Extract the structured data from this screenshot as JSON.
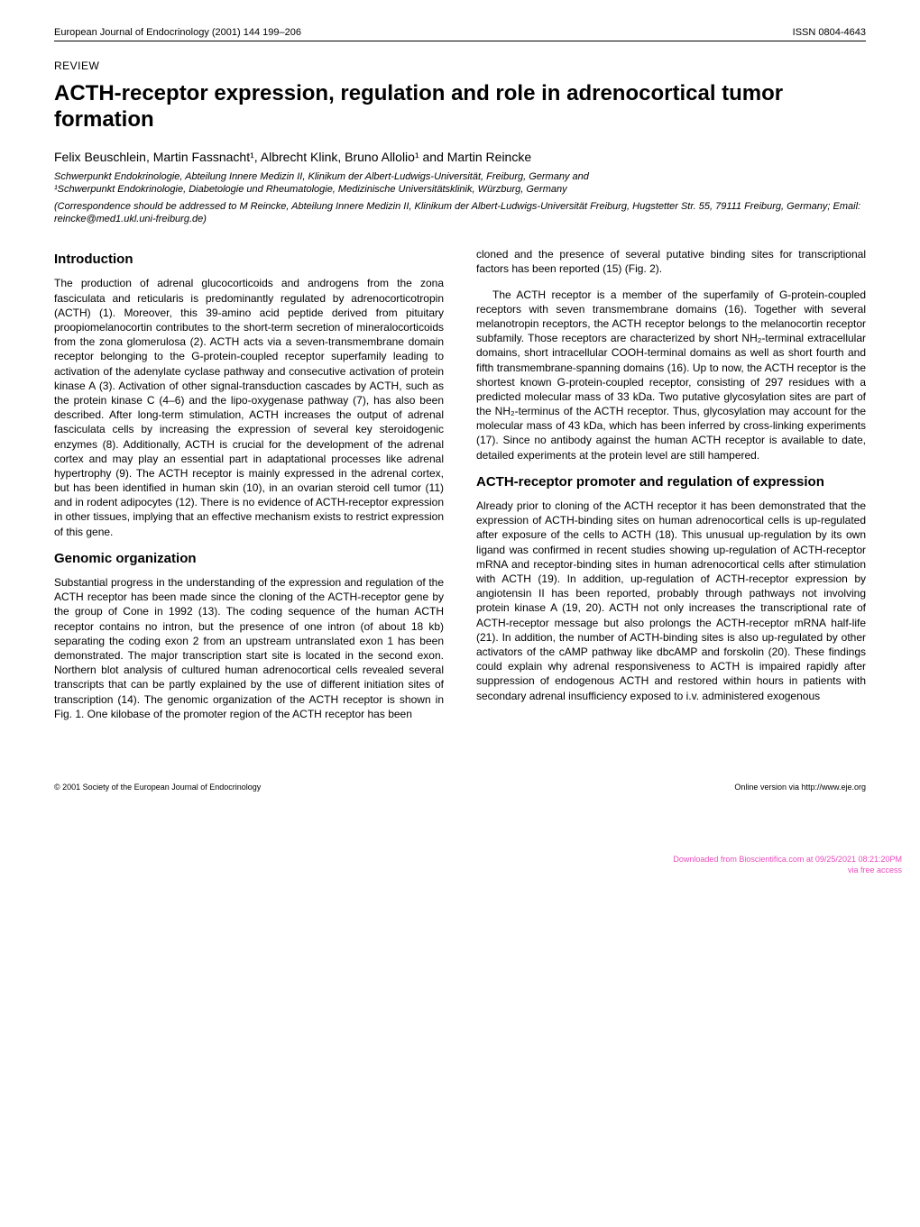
{
  "header": {
    "journal": "European Journal of Endocrinology (2001) 144 199–206",
    "issn": "ISSN 0804-4643"
  },
  "review_label": "REVIEW",
  "title": "ACTH-receptor expression, regulation and role in adrenocortical tumor formation",
  "authors": "Felix Beuschlein, Martin Fassnacht¹, Albrecht Klink, Bruno Allolio¹ and Martin Reincke",
  "affil1": "Schwerpunkt Endokrinologie, Abteilung Innere Medizin II, Klinikum der Albert-Ludwigs-Universität, Freiburg, Germany and",
  "affil2": "¹Schwerpunkt Endokrinologie, Diabetologie und Rheumatologie, Medizinische Universitätsklinik, Würzburg, Germany",
  "corresp": "(Correspondence should be addressed to M Reincke, Abteilung Innere Medizin II, Klinikum der Albert-Ludwigs-Universität Freiburg, Hugstetter Str. 55, 79111 Freiburg, Germany; Email: reincke@med1.ukl.uni-freiburg.de)",
  "sections": {
    "intro_heading": "Introduction",
    "intro_p1": "The production of adrenal glucocorticoids and androgens from the zona fasciculata and reticularis is predominantly regulated by adrenocorticotropin (ACTH) (1). Moreover, this 39-amino acid peptide derived from pituitary proopiomelanocortin contributes to the short-term secretion of mineralocorticoids from the zona glomerulosa (2). ACTH acts via a seven-transmembrane domain receptor belonging to the G-protein-coupled receptor superfamily leading to activation of the adenylate cyclase pathway and consecutive activation of protein kinase A (3). Activation of other signal-transduction cascades by ACTH, such as the protein kinase C (4–6) and the lipo-oxygenase pathway (7), has also been described. After long-term stimulation, ACTH increases the output of adrenal fasciculata cells by increasing the expression of several key steroidogenic enzymes (8). Additionally, ACTH is crucial for the development of the adrenal cortex and may play an essential part in adaptational processes like adrenal hypertrophy (9). The ACTH receptor is mainly expressed in the adrenal cortex, but has been identified in human skin (10), in an ovarian steroid cell tumor (11) and in rodent adipocytes (12). There is no evidence of ACTH-receptor expression in other tissues, implying that an effective mechanism exists to restrict expression of this gene.",
    "genomic_heading": "Genomic organization",
    "genomic_p1": "Substantial progress in the understanding of the expression and regulation of the ACTH receptor has been made since the cloning of the ACTH-receptor gene by the group of Cone in 1992 (13). The coding sequence of the human ACTH receptor contains no intron, but the presence of one intron (of about 18 kb) separating the coding exon 2 from an upstream untranslated exon 1 has been demonstrated. The major transcription start site is located in the second exon. Northern blot analysis of cultured human adrenocortical cells revealed several transcripts that can be partly explained by the use of different initiation sites of transcription (14). The genomic organization of the ACTH receptor is shown in Fig. 1. One kilobase of the promoter region of the ACTH receptor has been",
    "col2_p1": "cloned and the presence of several putative binding sites for transcriptional factors has been reported (15) (Fig. 2).",
    "col2_p2": "The ACTH receptor is a member of the superfamily of G-protein-coupled receptors with seven transmembrane domains (16). Together with several melanotropin receptors, the ACTH receptor belongs to the melanocortin receptor subfamily. Those receptors are characterized by short NH₂-terminal extracellular domains, short intracellular COOH-terminal domains as well as short fourth and fifth transmembrane-spanning domains (16). Up to now, the ACTH receptor is the shortest known G-protein-coupled receptor, consisting of 297 residues with a predicted molecular mass of 33 kDa. Two putative glycosylation sites are part of the NH₂-terminus of the ACTH receptor. Thus, glycosylation may account for the molecular mass of 43 kDa, which has been inferred by cross-linking experiments (17). Since no antibody against the human ACTH receptor is available to date, detailed experiments at the protein level are still hampered.",
    "promoter_heading": "ACTH-receptor promoter and regulation of expression",
    "promoter_p1": "Already prior to cloning of the ACTH receptor it has been demonstrated that the expression of ACTH-binding sites on human adrenocortical cells is up-regulated after exposure of the cells to ACTH (18). This unusual up-regulation by its own ligand was confirmed in recent studies showing up-regulation of ACTH-receptor mRNA and receptor-binding sites in human adrenocortical cells after stimulation with ACTH (19). In addition, up-regulation of ACTH-receptor expression by angiotensin II has been reported, probably through pathways not involving protein kinase A (19, 20). ACTH not only increases the transcriptional rate of ACTH-receptor message but also prolongs the ACTH-receptor mRNA half-life (21). In addition, the number of ACTH-binding sites is also up-regulated by other activators of the cAMP pathway like dbcAMP and forskolin (20). These findings could explain why adrenal responsiveness to ACTH is impaired rapidly after suppression of endogenous ACTH and restored within hours in patients with secondary adrenal insufficiency exposed to i.v. administered exogenous"
  },
  "footer": {
    "copyright": "© 2001 Society of the European Journal of Endocrinology",
    "online": "Online version via http://www.eje.org"
  },
  "download_note": {
    "line1": "Downloaded from Bioscientifica.com at 09/25/2021 08:21:20PM",
    "line2": "via free access"
  },
  "colors": {
    "text": "#000000",
    "bg": "#ffffff",
    "dl_color": "#e94bbd"
  }
}
